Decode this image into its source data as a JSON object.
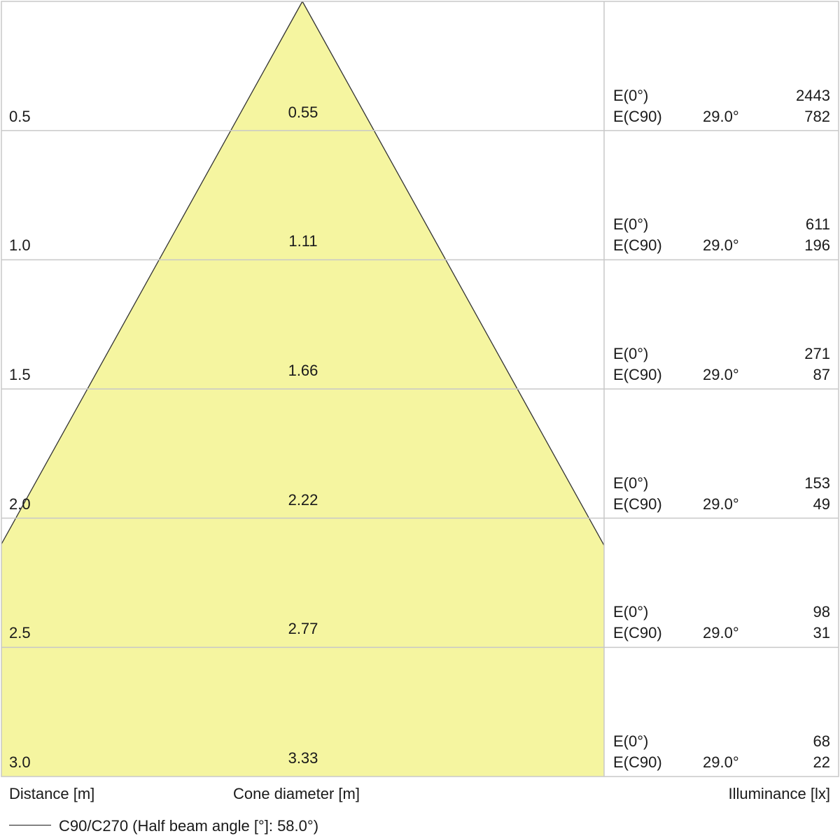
{
  "chart_data": {
    "type": "cone diagram",
    "distance_label": "Distance [m]",
    "diameter_label": "Cone diameter [m]",
    "illuminance_label": "Illuminance [lx]",
    "legend": "C90/C270 (Half beam angle [°]: 58.0°)",
    "half_beam_angle_deg": 58.0,
    "max_distance_m": 3.0,
    "rows": [
      {
        "distance": "0.5",
        "diameter": "0.55",
        "e0_label": "E(0°)",
        "e0": "2443",
        "ec90_label": "E(C90)",
        "angle": "29.0°",
        "ec90": "782"
      },
      {
        "distance": "1.0",
        "diameter": "1.11",
        "e0_label": "E(0°)",
        "e0": "611",
        "ec90_label": "E(C90)",
        "angle": "29.0°",
        "ec90": "196"
      },
      {
        "distance": "1.5",
        "diameter": "1.66",
        "e0_label": "E(0°)",
        "e0": "271",
        "ec90_label": "E(C90)",
        "angle": "29.0°",
        "ec90": "87"
      },
      {
        "distance": "2.0",
        "diameter": "2.22",
        "e0_label": "E(0°)",
        "e0": "153",
        "ec90_label": "E(C90)",
        "angle": "29.0°",
        "ec90": "49"
      },
      {
        "distance": "2.5",
        "diameter": "2.77",
        "e0_label": "E(0°)",
        "e0": "98",
        "ec90_label": "E(C90)",
        "angle": "29.0°",
        "ec90": "31"
      },
      {
        "distance": "3.0",
        "diameter": "3.33",
        "e0_label": "E(0°)",
        "e0": "68",
        "ec90_label": "E(C90)",
        "angle": "29.0°",
        "ec90": "22"
      }
    ],
    "colors": {
      "cone_fill": "#f5f5a0",
      "cone_stroke": "#333333",
      "grid": "#c8c8c8"
    }
  }
}
